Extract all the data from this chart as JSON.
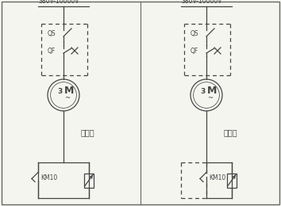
{
  "bg_color": "#f5f5f0",
  "line_color": "#444444",
  "voltage_label": "380V-10000V",
  "qs_label": "QS",
  "qf_label": "QF",
  "km10_label": "KM10",
  "left_label": "普通型",
  "right_label": "改造型",
  "figsize": [
    3.54,
    2.6
  ],
  "dpi": 100,
  "lw": 0.9
}
